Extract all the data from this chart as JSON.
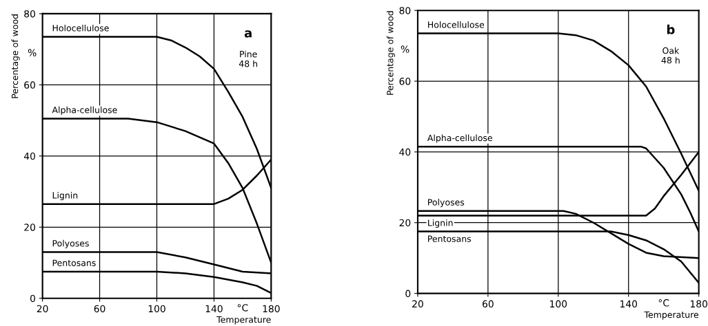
{
  "chart_data": [
    {
      "type": "line",
      "xlabel": "Temperature",
      "ylabel": "Percentage of wood",
      "xlim": [
        20,
        180
      ],
      "ylim": [
        0,
        80
      ],
      "xticks": [
        20,
        60,
        100,
        140,
        180
      ],
      "yticks": [
        0,
        20,
        40,
        60,
        80
      ],
      "grid": true,
      "legend": false,
      "marker": "none",
      "line_style": "solid",
      "annotations": [
        "a",
        "Pine\n48 h",
        "°C",
        "%"
      ],
      "series": [
        {
          "name": "Holocellulose",
          "color": "#000000",
          "x": [
            20,
            60,
            100,
            110,
            120,
            130,
            140,
            150,
            160,
            170,
            180
          ],
          "values": [
            73.5,
            73.5,
            73.5,
            72.5,
            70.5,
            68,
            64.5,
            58,
            51,
            42,
            31
          ]
        },
        {
          "name": "Alpha-cellulose",
          "color": "#000000",
          "x": [
            20,
            60,
            80,
            100,
            120,
            140,
            150,
            160,
            170,
            180
          ],
          "values": [
            50.5,
            50.5,
            50.5,
            49.5,
            47,
            43.5,
            38,
            31,
            21,
            10
          ]
        },
        {
          "name": "Lignin",
          "color": "#000000",
          "x": [
            20,
            60,
            100,
            140,
            150,
            160,
            170,
            180
          ],
          "values": [
            26.5,
            26.5,
            26.5,
            26.5,
            28,
            30.5,
            34.5,
            39
          ]
        },
        {
          "name": "Polyoses",
          "color": "#000000",
          "x": [
            20,
            60,
            100,
            120,
            140,
            160,
            180
          ],
          "values": [
            13,
            13,
            13,
            11.5,
            9.5,
            7.5,
            7
          ]
        },
        {
          "name": "Pentosans",
          "color": "#000000",
          "x": [
            20,
            60,
            100,
            120,
            140,
            160,
            170,
            180
          ],
          "values": [
            7.5,
            7.5,
            7.5,
            7,
            6,
            4.5,
            3.5,
            1.5
          ]
        }
      ]
    },
    {
      "type": "line",
      "xlabel": "Temperature",
      "ylabel": "Percentage of wood",
      "xlim": [
        20,
        180
      ],
      "ylim": [
        0,
        80
      ],
      "xticks": [
        20,
        60,
        100,
        140,
        180
      ],
      "yticks": [
        0,
        20,
        40,
        60,
        80
      ],
      "grid": true,
      "legend": false,
      "marker": "none",
      "line_style": "solid",
      "annotations": [
        "b",
        "Oak\n48 h",
        "°C",
        "%"
      ],
      "series": [
        {
          "name": "Holocellulose",
          "color": "#000000",
          "x": [
            20,
            60,
            100,
            110,
            120,
            130,
            140,
            150,
            160,
            170,
            180
          ],
          "values": [
            73.5,
            73.5,
            73.5,
            73,
            71.5,
            68.5,
            64.5,
            58.5,
            49.5,
            39.5,
            29
          ]
        },
        {
          "name": "Alpha-cellulose",
          "color": "#000000",
          "x": [
            20,
            60,
            100,
            147,
            150,
            160,
            170,
            175,
            180
          ],
          "values": [
            41.5,
            41.5,
            41.5,
            41.5,
            41,
            35.5,
            28,
            23,
            17.5
          ]
        },
        {
          "name": "Polyoses",
          "color": "#000000",
          "x": [
            20,
            60,
            103,
            110,
            120,
            130,
            140,
            150,
            160,
            180
          ],
          "values": [
            23.3,
            23.3,
            23.3,
            22.5,
            20,
            17,
            14,
            11.5,
            10.5,
            10
          ]
        },
        {
          "name": "Lignin",
          "color": "#000000",
          "x": [
            20,
            60,
            100,
            150,
            155,
            160,
            170,
            180
          ],
          "values": [
            22,
            22,
            22,
            22,
            24,
            27.5,
            33.5,
            40
          ]
        },
        {
          "name": "Pentosans",
          "color": "#000000",
          "x": [
            20,
            60,
            100,
            130,
            140,
            150,
            160,
            170,
            180
          ],
          "values": [
            17.5,
            17.5,
            17.5,
            17.5,
            16.5,
            15,
            12.5,
            9,
            3
          ]
        }
      ]
    }
  ]
}
